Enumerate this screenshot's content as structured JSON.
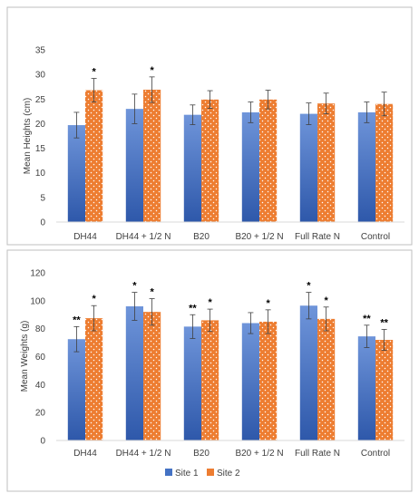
{
  "colors": {
    "site1": "#4472C4",
    "site1_light": "#6F95DA",
    "site1_dark": "#2E58AA",
    "site2": "#ED7D31",
    "frame": "#BFBFBF",
    "axis": "#D9D9D9",
    "text": "#404040"
  },
  "legend": {
    "position": "bottom-center",
    "site1": "Site 1",
    "site2": "Site 2"
  },
  "chart_data": [
    {
      "type": "bar",
      "ylabel": "Mean Heights (cm)",
      "ylim": [
        0,
        35
      ],
      "yticks": [
        0,
        5,
        10,
        15,
        20,
        25,
        30,
        35
      ],
      "categories": [
        "DH44",
        "DH44 + 1/2 N",
        "B20",
        "B20 + 1/2 N",
        "Full Rate N",
        "Control"
      ],
      "series": [
        {
          "name": "Site 1",
          "values": [
            19.7,
            23.0,
            21.8,
            22.3,
            22.0,
            22.3
          ],
          "errors": [
            2.6,
            3.0,
            2.0,
            2.1,
            2.2,
            2.1
          ],
          "significance": [
            "",
            "",
            "",
            "",
            "",
            ""
          ]
        },
        {
          "name": "Site 2",
          "values": [
            26.8,
            26.9,
            24.9,
            24.9,
            24.1,
            24.0
          ],
          "errors": [
            2.4,
            2.6,
            1.8,
            1.9,
            2.1,
            2.4
          ],
          "significance": [
            "*",
            "*",
            "",
            "",
            "",
            ""
          ]
        }
      ]
    },
    {
      "type": "bar",
      "ylabel": "Mean Weights (g)",
      "ylim": [
        0,
        120
      ],
      "yticks": [
        0,
        20,
        40,
        60,
        80,
        100,
        120
      ],
      "categories": [
        "DH44",
        "DH44 + 1/2 N",
        "B20",
        "B20 + 1/2 N",
        "Full Rate N",
        "Control"
      ],
      "series": [
        {
          "name": "Site 1",
          "values": [
            72.5,
            96.0,
            81.5,
            84.0,
            96.5,
            74.5
          ],
          "errors": [
            9.0,
            10.0,
            8.5,
            7.5,
            9.5,
            8.0
          ],
          "significance": [
            "**",
            "*",
            "**",
            "",
            "*",
            "**"
          ]
        },
        {
          "name": "Site 2",
          "values": [
            87.5,
            92.0,
            86.0,
            85.0,
            87.0,
            72.0
          ],
          "errors": [
            9.0,
            9.5,
            8.0,
            8.5,
            8.5,
            7.5
          ],
          "significance": [
            "*",
            "*",
            "*",
            "*",
            "*",
            "**"
          ]
        }
      ]
    }
  ]
}
